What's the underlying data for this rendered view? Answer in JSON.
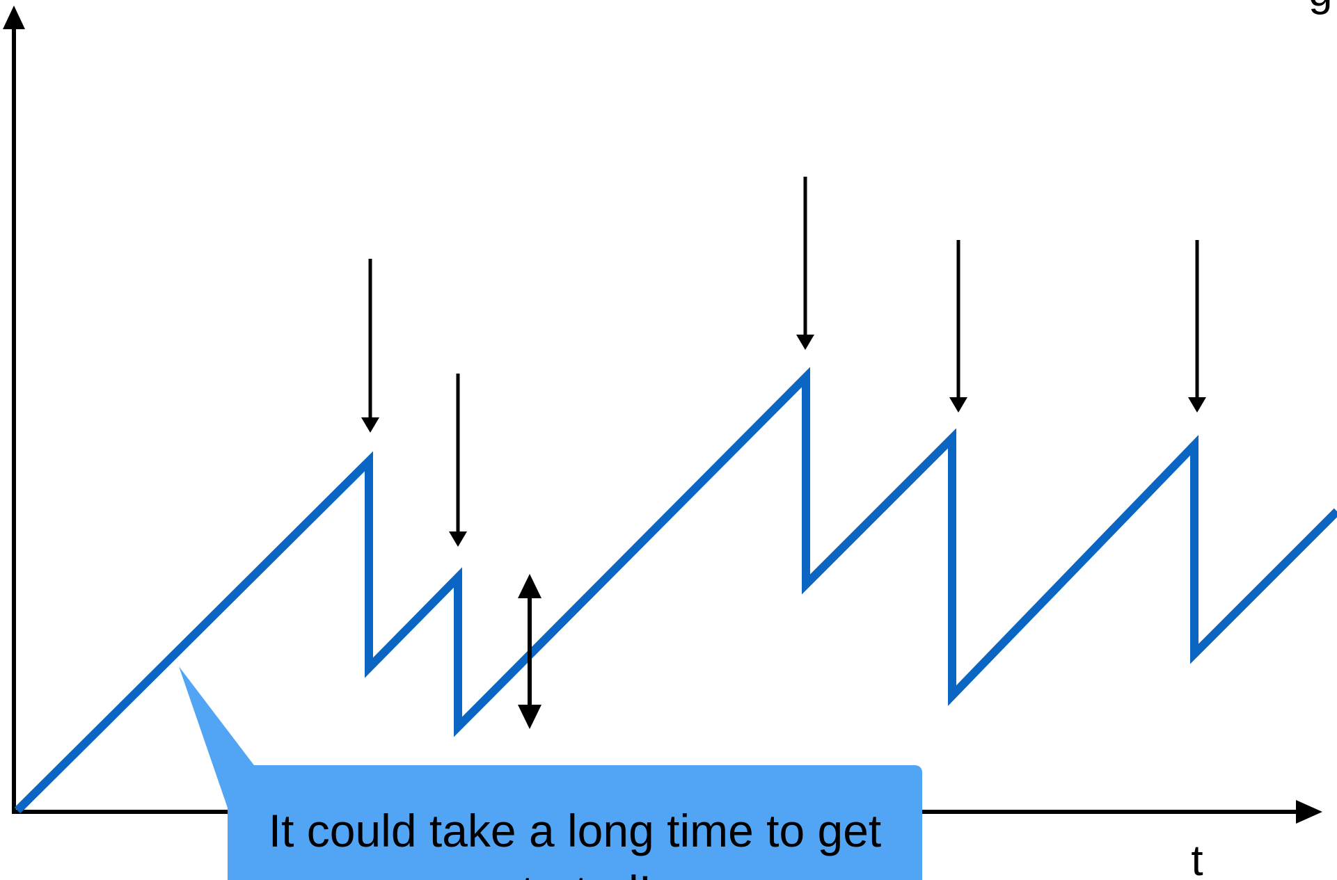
{
  "diagram": {
    "x_axis_label": "t",
    "callout_text": [
      "It  could take a long time to get",
      "started!"
    ],
    "colors": {
      "sawtooth": "#0a66c2",
      "callout_fill": "#52a5f5",
      "axes": "#000000",
      "arrows": "#000000"
    }
  }
}
